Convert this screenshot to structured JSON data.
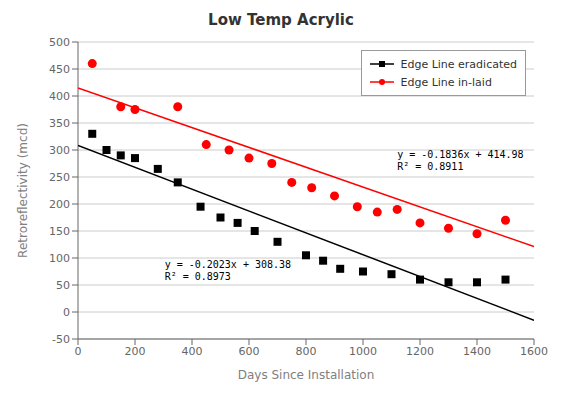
{
  "chart_data": {
    "type": "scatter",
    "title": "Low Temp Acrylic",
    "xlabel": "Days Since Installation",
    "ylabel": "Retroreflectivity (mcd)",
    "xlim": [
      0,
      1600
    ],
    "ylim": [
      -50,
      500
    ],
    "xticks": [
      0,
      200,
      400,
      600,
      800,
      1000,
      1200,
      1400,
      1600
    ],
    "yticks": [
      -50,
      0,
      50,
      100,
      150,
      200,
      250,
      300,
      350,
      400,
      450,
      500
    ],
    "grid": true,
    "legend": "upper right",
    "series": [
      {
        "name": "Edge Line eradicated",
        "color": "#000000",
        "marker": "square",
        "x": [
          50,
          100,
          150,
          200,
          280,
          350,
          430,
          500,
          560,
          620,
          700,
          800,
          860,
          920,
          1000,
          1100,
          1200,
          1300,
          1400,
          1500
        ],
        "values": [
          330,
          300,
          290,
          285,
          265,
          240,
          195,
          175,
          165,
          150,
          130,
          105,
          95,
          80,
          75,
          70,
          60,
          55,
          55,
          60
        ]
      },
      {
        "name": "Edge Line in-laid",
        "color": "#ff0000",
        "marker": "circle",
        "x": [
          50,
          150,
          200,
          350,
          450,
          530,
          600,
          680,
          750,
          820,
          900,
          980,
          1050,
          1120,
          1200,
          1300,
          1400,
          1500
        ],
        "values": [
          460,
          380,
          375,
          380,
          310,
          300,
          285,
          275,
          240,
          230,
          215,
          195,
          185,
          190,
          165,
          155,
          145,
          170
        ]
      },
      {
        "type": "line",
        "color": "#000000",
        "x": [
          0,
          1600
        ],
        "values": [
          308.38,
          -15.3
        ]
      },
      {
        "type": "line",
        "color": "#ff0000",
        "x": [
          0,
          1600
        ],
        "values": [
          414.98,
          121.22
        ]
      }
    ],
    "annotations": [
      [
        "y = -0.1836x + 414.98",
        "R² = 0.8911"
      ],
      [
        "y = -0.2023x + 308.38",
        "R² = 0.8973"
      ]
    ]
  }
}
